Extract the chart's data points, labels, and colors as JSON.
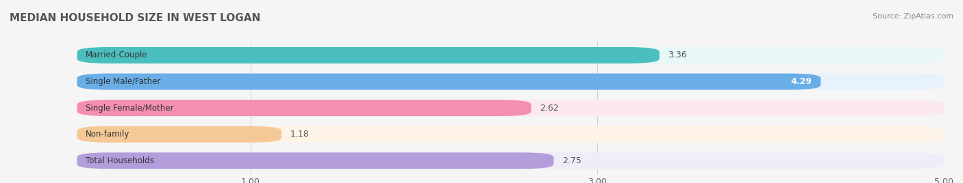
{
  "title": "MEDIAN HOUSEHOLD SIZE IN WEST LOGAN",
  "source": "Source: ZipAtlas.com",
  "categories": [
    "Married-Couple",
    "Single Male/Father",
    "Single Female/Mother",
    "Non-family",
    "Total Households"
  ],
  "values": [
    3.36,
    4.29,
    2.62,
    1.18,
    2.75
  ],
  "bar_colors": [
    "#4bbfbf",
    "#6aaee8",
    "#f48fb1",
    "#f5c996",
    "#b39ddb"
  ],
  "bar_bg_colors": [
    "#e8f8f8",
    "#e8f2fc",
    "#fce8f0",
    "#fdf3e7",
    "#f0ecf8"
  ],
  "label_colors": [
    "#333333",
    "#ffffff",
    "#333333",
    "#333333",
    "#333333"
  ],
  "xmin": 0,
  "xmax": 5.0,
  "xticks": [
    1.0,
    3.0,
    5.0
  ],
  "xlim_left": 0,
  "figsize": [
    14.06,
    2.68
  ],
  "dpi": 100
}
